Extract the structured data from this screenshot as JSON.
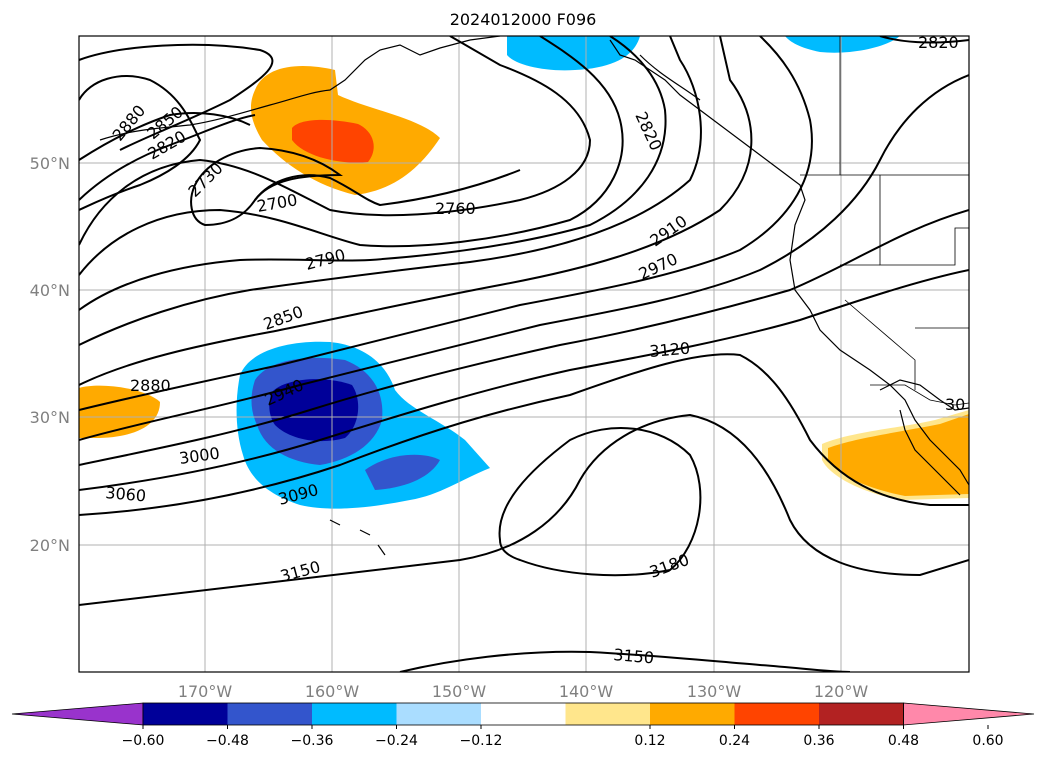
{
  "title": "2024012000 F096",
  "lat_labels": [
    "50°N",
    "40°N",
    "30°N",
    "20°N"
  ],
  "lon_labels": [
    "170°W",
    "160°W",
    "150°W",
    "140°W",
    "130°W",
    "120°W"
  ],
  "contour_labels": [
    "2880",
    "2850",
    "2820",
    "2730",
    "2700",
    "2760",
    "2790",
    "2850",
    "2880",
    "2940",
    "3000",
    "3060",
    "3090",
    "2820",
    "2910",
    "2970",
    "3120",
    "3150",
    "3180",
    "3150",
    "2820",
    "30"
  ],
  "colorbar": {
    "colors": [
      "#9933cc",
      "#000099",
      "#3355cc",
      "#00bbff",
      "#aaddff",
      "#ffffff",
      "#ffe68c",
      "#ffaa00",
      "#ff4400",
      "#b22222",
      "#ff88aa"
    ],
    "ticks": [
      "−0.60",
      "−0.48",
      "−0.36",
      "−0.24",
      "−0.12",
      "0.12",
      "0.24",
      "0.36",
      "0.48",
      "0.60"
    ]
  },
  "colors": {
    "grid": "#b0b0b0",
    "contour": "#000000"
  }
}
